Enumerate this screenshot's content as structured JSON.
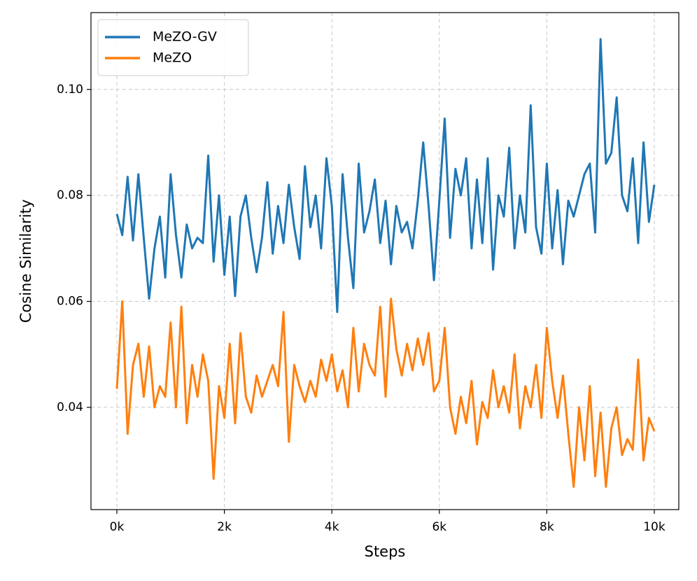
{
  "chart_data": {
    "type": "line",
    "xlabel": "Steps",
    "ylabel": "Cosine Similarity",
    "x": [
      0,
      100,
      200,
      300,
      400,
      500,
      600,
      700,
      800,
      900,
      1000,
      1100,
      1200,
      1300,
      1400,
      1500,
      1600,
      1700,
      1800,
      1900,
      2000,
      2100,
      2200,
      2300,
      2400,
      2500,
      2600,
      2700,
      2800,
      2900,
      3000,
      3100,
      3200,
      3300,
      3400,
      3500,
      3600,
      3700,
      3800,
      3900,
      4000,
      4100,
      4200,
      4300,
      4400,
      4500,
      4600,
      4700,
      4800,
      4900,
      5000,
      5100,
      5200,
      5300,
      5400,
      5500,
      5600,
      5700,
      5800,
      5900,
      6000,
      6100,
      6200,
      6300,
      6400,
      6500,
      6600,
      6700,
      6800,
      6900,
      7000,
      7100,
      7200,
      7300,
      7400,
      7500,
      7600,
      7700,
      7800,
      7900,
      8000,
      8100,
      8200,
      8300,
      8400,
      8500,
      8600,
      8700,
      8800,
      8900,
      9000,
      9100,
      9200,
      9300,
      9400,
      9500,
      9600,
      9700,
      9800,
      9900,
      10000
    ],
    "series": [
      {
        "name": "MeZO-GV",
        "color": "#1f77b4",
        "values": [
          0.0765,
          0.0725,
          0.0835,
          0.0715,
          0.084,
          0.072,
          0.0605,
          0.07,
          0.076,
          0.0645,
          0.084,
          0.0725,
          0.0645,
          0.0745,
          0.07,
          0.072,
          0.071,
          0.0875,
          0.0675,
          0.08,
          0.065,
          0.076,
          0.061,
          0.076,
          0.08,
          0.072,
          0.0655,
          0.072,
          0.0825,
          0.069,
          0.078,
          0.071,
          0.082,
          0.074,
          0.068,
          0.0855,
          0.074,
          0.08,
          0.07,
          0.087,
          0.078,
          0.058,
          0.084,
          0.072,
          0.0625,
          0.086,
          0.073,
          0.077,
          0.083,
          0.071,
          0.079,
          0.067,
          0.078,
          0.073,
          0.075,
          0.07,
          0.079,
          0.09,
          0.078,
          0.064,
          0.079,
          0.0945,
          0.072,
          0.085,
          0.08,
          0.087,
          0.07,
          0.083,
          0.071,
          0.087,
          0.066,
          0.08,
          0.076,
          0.089,
          0.07,
          0.08,
          0.073,
          0.097,
          0.074,
          0.069,
          0.086,
          0.07,
          0.081,
          0.067,
          0.079,
          0.076,
          0.08,
          0.084,
          0.086,
          0.073,
          0.1095,
          0.086,
          0.088,
          0.0985,
          0.08,
          0.077,
          0.087,
          0.071,
          0.09,
          0.075,
          0.082
        ]
      },
      {
        "name": "MeZO",
        "color": "#ff7f0e",
        "values": [
          0.0435,
          0.06,
          0.035,
          0.048,
          0.052,
          0.042,
          0.0515,
          0.04,
          0.044,
          0.042,
          0.056,
          0.04,
          0.059,
          0.037,
          0.048,
          0.042,
          0.05,
          0.045,
          0.0265,
          0.044,
          0.038,
          0.052,
          0.037,
          0.054,
          0.042,
          0.039,
          0.046,
          0.042,
          0.045,
          0.048,
          0.044,
          0.058,
          0.0335,
          0.048,
          0.044,
          0.041,
          0.045,
          0.042,
          0.049,
          0.045,
          0.05,
          0.043,
          0.047,
          0.04,
          0.055,
          0.043,
          0.052,
          0.048,
          0.046,
          0.059,
          0.042,
          0.0605,
          0.051,
          0.046,
          0.052,
          0.047,
          0.053,
          0.048,
          0.054,
          0.043,
          0.045,
          0.055,
          0.04,
          0.035,
          0.042,
          0.037,
          0.045,
          0.033,
          0.041,
          0.038,
          0.047,
          0.04,
          0.044,
          0.039,
          0.05,
          0.036,
          0.044,
          0.04,
          0.048,
          0.038,
          0.055,
          0.045,
          0.038,
          0.046,
          0.035,
          0.025,
          0.04,
          0.03,
          0.044,
          0.027,
          0.039,
          0.025,
          0.036,
          0.04,
          0.031,
          0.034,
          0.032,
          0.049,
          0.03,
          0.038,
          0.0355
        ]
      }
    ],
    "xlim": [
      -482,
      10456
    ],
    "ylim": [
      0.0207,
      0.1145
    ],
    "xticks": [
      {
        "value": 0,
        "label": "0k"
      },
      {
        "value": 2000,
        "label": "2k"
      },
      {
        "value": 4000,
        "label": "4k"
      },
      {
        "value": 6000,
        "label": "6k"
      },
      {
        "value": 8000,
        "label": "8k"
      },
      {
        "value": 10000,
        "label": "10k"
      }
    ],
    "yticks": [
      0.04,
      0.06,
      0.08,
      {
        "value": 0.1,
        "label": "0.10"
      }
    ],
    "grid": true,
    "legend": "upper left"
  }
}
